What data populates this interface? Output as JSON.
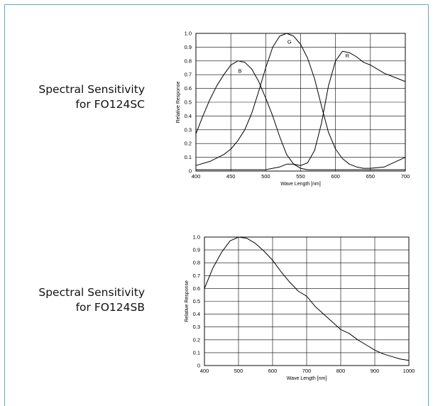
{
  "captions": [
    {
      "line1": "Spectral Sensitivity",
      "line2": "for FO124SC"
    },
    {
      "line1": "Spectral Sensitivity",
      "line2": "for FO124SB"
    }
  ],
  "chart_data": [
    {
      "type": "line",
      "xlabel": "Wave Length [nm]",
      "ylabel": "Relative Response",
      "xlim": [
        400,
        700
      ],
      "ylim": [
        0,
        1.0
      ],
      "xticks": [
        400,
        450,
        500,
        550,
        600,
        650,
        700
      ],
      "yticks": [
        0,
        0.1,
        0.2,
        0.3,
        0.4,
        0.5,
        0.6,
        0.7,
        0.8,
        0.9,
        1.0
      ],
      "ytick_labels": [
        "0",
        "0.1",
        "0.2",
        "0.3",
        "0.4",
        "0.5",
        "0.6",
        "0.7",
        "0.8",
        "0.9",
        "1.0"
      ],
      "grid": true,
      "series": [
        {
          "name": "B",
          "x": [
            400,
            410,
            420,
            430,
            440,
            450,
            460,
            470,
            480,
            490,
            500,
            510,
            520,
            530,
            540,
            550,
            560,
            570,
            580,
            590,
            600,
            650,
            700
          ],
          "y": [
            0.27,
            0.4,
            0.52,
            0.62,
            0.7,
            0.77,
            0.8,
            0.79,
            0.74,
            0.65,
            0.53,
            0.4,
            0.25,
            0.12,
            0.05,
            0.02,
            0.01,
            0.01,
            0.01,
            0.01,
            0.01,
            0.01,
            0.01
          ],
          "label_at": [
            463,
            0.73
          ]
        },
        {
          "name": "G",
          "x": [
            400,
            420,
            440,
            450,
            460,
            470,
            480,
            490,
            500,
            510,
            520,
            530,
            540,
            550,
            560,
            570,
            580,
            590,
            600,
            610,
            620,
            630,
            640,
            650,
            670,
            700
          ],
          "y": [
            0.04,
            0.07,
            0.12,
            0.16,
            0.22,
            0.3,
            0.42,
            0.58,
            0.75,
            0.9,
            0.98,
            1.0,
            0.98,
            0.92,
            0.82,
            0.67,
            0.47,
            0.28,
            0.16,
            0.09,
            0.05,
            0.03,
            0.02,
            0.02,
            0.03,
            0.1
          ],
          "label_at": [
            534,
            0.94
          ]
        },
        {
          "name": "R",
          "x": [
            400,
            450,
            500,
            510,
            520,
            530,
            540,
            550,
            560,
            570,
            580,
            590,
            600,
            610,
            620,
            630,
            640,
            650,
            660,
            670,
            680,
            690,
            700
          ],
          "y": [
            0.01,
            0.01,
            0.01,
            0.02,
            0.03,
            0.05,
            0.05,
            0.04,
            0.06,
            0.15,
            0.35,
            0.62,
            0.8,
            0.87,
            0.86,
            0.83,
            0.79,
            0.77,
            0.74,
            0.71,
            0.69,
            0.67,
            0.65
          ],
          "label_at": [
            617,
            0.84
          ]
        }
      ]
    },
    {
      "type": "line",
      "xlabel": "Wave Length [nm]",
      "ylabel": "Relative Response",
      "xlim": [
        400,
        1000
      ],
      "ylim": [
        0,
        1.0
      ],
      "xticks": [
        400,
        500,
        600,
        700,
        800,
        900,
        1000
      ],
      "yticks": [
        0,
        0.1,
        0.2,
        0.3,
        0.4,
        0.5,
        0.6,
        0.7,
        0.8,
        0.9,
        1.0
      ],
      "ytick_labels": [
        "0",
        "0.1",
        "0.2",
        "0.3",
        "0.4",
        "0.5",
        "0.6",
        "0.7",
        "0.8",
        "0.9",
        "1.0"
      ],
      "grid": true,
      "series": [
        {
          "x": [
            400,
            425,
            450,
            475,
            500,
            525,
            550,
            575,
            600,
            625,
            650,
            675,
            700,
            725,
            750,
            775,
            800,
            825,
            850,
            875,
            900,
            925,
            950,
            975,
            1000
          ],
          "y": [
            0.6,
            0.76,
            0.88,
            0.97,
            1.0,
            0.99,
            0.95,
            0.89,
            0.82,
            0.73,
            0.65,
            0.58,
            0.54,
            0.46,
            0.4,
            0.34,
            0.28,
            0.25,
            0.2,
            0.16,
            0.12,
            0.09,
            0.07,
            0.05,
            0.04
          ]
        }
      ]
    }
  ]
}
